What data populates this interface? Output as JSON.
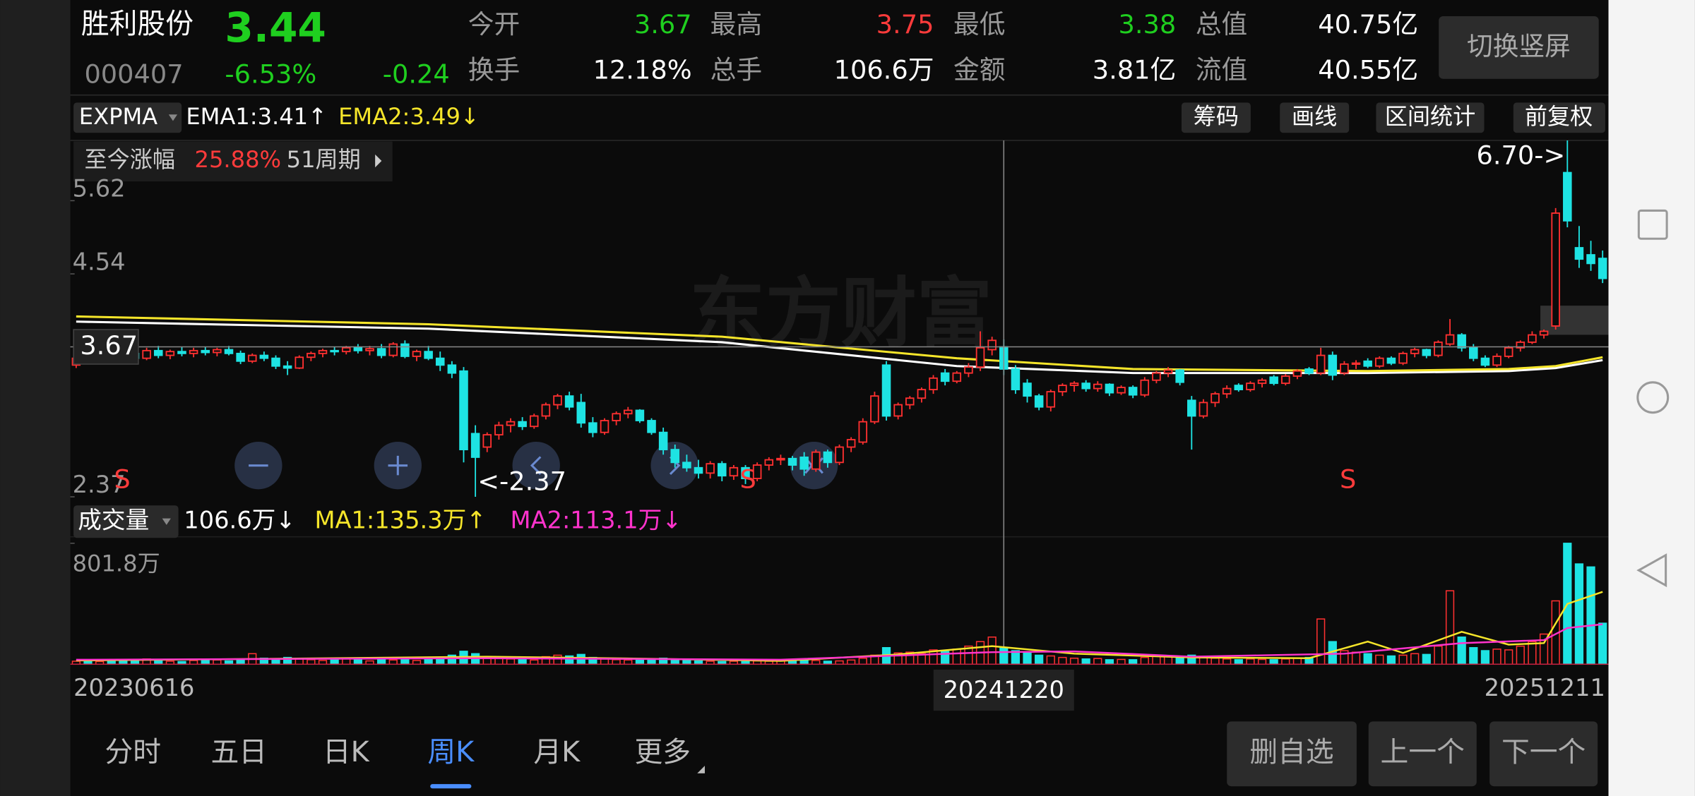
{
  "header": {
    "name": "胜利股份",
    "price": "3.44",
    "code": "000407",
    "change_pct": "-6.53%",
    "change": "-0.24",
    "tone": "down",
    "button": "切换竖屏",
    "stats": [
      {
        "label": "今开",
        "value": "3.67",
        "tone": "down"
      },
      {
        "label": "最高",
        "value": "3.75",
        "tone": "up"
      },
      {
        "label": "最低",
        "value": "3.38",
        "tone": "down"
      },
      {
        "label": "总值",
        "value": "40.75亿",
        "tone": "flat"
      },
      {
        "label": "换手",
        "value": "12.18%",
        "tone": "flat"
      },
      {
        "label": "总手",
        "value": "106.6万",
        "tone": "flat"
      },
      {
        "label": "金额",
        "value": "3.81亿",
        "tone": "flat"
      },
      {
        "label": "流值",
        "value": "40.55亿",
        "tone": "flat"
      }
    ]
  },
  "colors": {
    "up": "#ff3b3b",
    "down": "#1fcf1f",
    "flat": "#ffffff",
    "candle_up": "#ff3030",
    "candle_down": "#1ee3e3"
  },
  "indicator": {
    "name": "EXPMA",
    "ema1": "EMA1:3.41↑",
    "ema2": "EMA2:3.49↓"
  },
  "tools": [
    "筹码",
    "画线",
    "区间统计",
    "前复权"
  ],
  "range_stat": {
    "label": "至今涨幅",
    "value": "25.88%",
    "period": "51周期"
  },
  "chart": {
    "type": "candlestick",
    "watermark": "东方财富",
    "log": true,
    "ylim": [
      2.37,
      6.7
    ],
    "yticks": [
      5.62,
      4.54,
      2.37
    ],
    "crosshair_index": 79,
    "crosshair_value": 3.67,
    "max_label": {
      "value": 6.7,
      "label": "6.70->"
    },
    "min_label": {
      "value": 2.37,
      "label": "<-2.37"
    },
    "signals": [
      "S",
      "S",
      "S"
    ],
    "categories": [
      "20230616",
      null,
      null,
      null,
      null,
      null,
      null,
      null,
      null,
      null,
      null,
      null,
      null,
      null,
      null,
      null,
      null,
      null,
      null,
      null,
      null,
      null,
      null,
      null,
      null,
      null,
      null,
      null,
      null,
      null,
      null,
      null,
      null,
      null,
      null,
      null,
      null,
      null,
      null,
      null,
      null,
      null,
      null,
      null,
      null,
      null,
      null,
      null,
      null,
      null,
      null,
      null,
      null,
      null,
      null,
      null,
      null,
      null,
      null,
      null,
      null,
      null,
      null,
      null,
      null,
      null,
      null,
      null,
      null,
      null,
      null,
      null,
      null,
      null,
      null,
      null,
      null,
      null,
      null,
      "20241220",
      null,
      null,
      null,
      null,
      null,
      null,
      null,
      null,
      null,
      null,
      null,
      null,
      null,
      null,
      null,
      null,
      null,
      null,
      null,
      null,
      null,
      null,
      null,
      null,
      null,
      null,
      null,
      null,
      null,
      null,
      null,
      null,
      null,
      null,
      null,
      null,
      null,
      null,
      null,
      null,
      null,
      null,
      null,
      null,
      null,
      null,
      null,
      null,
      null,
      null,
      "20251211"
    ],
    "candles": [
      [
        3.48,
        3.58,
        3.45,
        3.55
      ],
      [
        3.55,
        3.62,
        3.5,
        3.52
      ],
      [
        3.52,
        3.66,
        3.5,
        3.64
      ],
      [
        3.64,
        3.7,
        3.58,
        3.62
      ],
      [
        3.62,
        3.68,
        3.56,
        3.6
      ],
      [
        3.6,
        3.65,
        3.52,
        3.55
      ],
      [
        3.55,
        3.66,
        3.53,
        3.63
      ],
      [
        3.63,
        3.68,
        3.55,
        3.58
      ],
      [
        3.58,
        3.64,
        3.54,
        3.62
      ],
      [
        3.62,
        3.67,
        3.57,
        3.6
      ],
      [
        3.6,
        3.66,
        3.56,
        3.63
      ],
      [
        3.63,
        3.67,
        3.58,
        3.61
      ],
      [
        3.61,
        3.66,
        3.57,
        3.64
      ],
      [
        3.64,
        3.68,
        3.58,
        3.6
      ],
      [
        3.6,
        3.63,
        3.49,
        3.52
      ],
      [
        3.52,
        3.6,
        3.5,
        3.58
      ],
      [
        3.58,
        3.62,
        3.52,
        3.55
      ],
      [
        3.55,
        3.58,
        3.44,
        3.47
      ],
      [
        3.47,
        3.52,
        3.38,
        3.45
      ],
      [
        3.45,
        3.58,
        3.44,
        3.56
      ],
      [
        3.56,
        3.62,
        3.52,
        3.6
      ],
      [
        3.6,
        3.65,
        3.56,
        3.63
      ],
      [
        3.63,
        3.67,
        3.58,
        3.62
      ],
      [
        3.62,
        3.68,
        3.59,
        3.66
      ],
      [
        3.66,
        3.7,
        3.6,
        3.63
      ],
      [
        3.63,
        3.68,
        3.58,
        3.65
      ],
      [
        3.65,
        3.7,
        3.55,
        3.58
      ],
      [
        3.58,
        3.72,
        3.56,
        3.7
      ],
      [
        3.7,
        3.74,
        3.55,
        3.57
      ],
      [
        3.57,
        3.64,
        3.52,
        3.62
      ],
      [
        3.62,
        3.68,
        3.53,
        3.55
      ],
      [
        3.55,
        3.62,
        3.42,
        3.48
      ],
      [
        3.48,
        3.52,
        3.35,
        3.4
      ],
      [
        3.42,
        3.46,
        2.62,
        2.72
      ],
      [
        2.85,
        2.92,
        2.37,
        2.66
      ],
      [
        2.74,
        2.86,
        2.7,
        2.84
      ],
      [
        2.84,
        2.95,
        2.8,
        2.92
      ],
      [
        2.92,
        2.98,
        2.86,
        2.95
      ],
      [
        2.95,
        2.99,
        2.88,
        2.91
      ],
      [
        2.91,
        3.02,
        2.89,
        3.0
      ],
      [
        3.0,
        3.12,
        2.97,
        3.1
      ],
      [
        3.1,
        3.2,
        3.06,
        3.18
      ],
      [
        3.18,
        3.22,
        3.05,
        3.08
      ],
      [
        3.12,
        3.2,
        2.9,
        2.94
      ],
      [
        2.94,
        2.99,
        2.82,
        2.86
      ],
      [
        2.86,
        2.98,
        2.84,
        2.96
      ],
      [
        2.96,
        3.04,
        2.92,
        3.02
      ],
      [
        3.02,
        3.08,
        2.98,
        3.05
      ],
      [
        3.05,
        3.06,
        2.94,
        2.96
      ],
      [
        2.96,
        2.98,
        2.84,
        2.86
      ],
      [
        2.86,
        2.9,
        2.68,
        2.72
      ],
      [
        2.72,
        2.76,
        2.58,
        2.62
      ],
      [
        2.62,
        2.68,
        2.55,
        2.58
      ],
      [
        2.58,
        2.64,
        2.5,
        2.54
      ],
      [
        2.54,
        2.63,
        2.5,
        2.61
      ],
      [
        2.61,
        2.63,
        2.48,
        2.52
      ],
      [
        2.52,
        2.6,
        2.49,
        2.58
      ],
      [
        2.58,
        2.6,
        2.46,
        2.5
      ],
      [
        2.5,
        2.62,
        2.48,
        2.6
      ],
      [
        2.6,
        2.66,
        2.56,
        2.64
      ],
      [
        2.64,
        2.68,
        2.6,
        2.65
      ],
      [
        2.65,
        2.67,
        2.56,
        2.6
      ],
      [
        2.66,
        2.7,
        2.52,
        2.57
      ],
      [
        2.57,
        2.72,
        2.55,
        2.7
      ],
      [
        2.7,
        2.72,
        2.58,
        2.62
      ],
      [
        2.62,
        2.76,
        2.6,
        2.74
      ],
      [
        2.74,
        2.82,
        2.7,
        2.8
      ],
      [
        2.78,
        2.98,
        2.76,
        2.95
      ],
      [
        2.95,
        3.22,
        2.93,
        3.18
      ],
      [
        3.48,
        3.52,
        2.96,
        3.0
      ],
      [
        3.0,
        3.12,
        2.97,
        3.1
      ],
      [
        3.1,
        3.18,
        3.06,
        3.16
      ],
      [
        3.16,
        3.26,
        3.12,
        3.24
      ],
      [
        3.24,
        3.38,
        3.2,
        3.35
      ],
      [
        3.4,
        3.44,
        3.28,
        3.32
      ],
      [
        3.32,
        3.42,
        3.3,
        3.4
      ],
      [
        3.4,
        3.5,
        3.36,
        3.46
      ],
      [
        3.46,
        3.84,
        3.42,
        3.66
      ],
      [
        3.64,
        3.78,
        3.58,
        3.74
      ],
      [
        3.67,
        3.75,
        3.38,
        3.44
      ],
      [
        3.44,
        3.48,
        3.2,
        3.24
      ],
      [
        3.3,
        3.34,
        3.12,
        3.18
      ],
      [
        3.18,
        3.2,
        3.05,
        3.08
      ],
      [
        3.08,
        3.24,
        3.04,
        3.22
      ],
      [
        3.22,
        3.3,
        3.18,
        3.28
      ],
      [
        3.28,
        3.32,
        3.22,
        3.3
      ],
      [
        3.3,
        3.33,
        3.22,
        3.25
      ],
      [
        3.25,
        3.32,
        3.22,
        3.29
      ],
      [
        3.29,
        3.3,
        3.18,
        3.21
      ],
      [
        3.21,
        3.28,
        3.19,
        3.26
      ],
      [
        3.26,
        3.28,
        3.16,
        3.19
      ],
      [
        3.19,
        3.36,
        3.17,
        3.33
      ],
      [
        3.33,
        3.42,
        3.3,
        3.4
      ],
      [
        3.4,
        3.46,
        3.36,
        3.43
      ],
      [
        3.43,
        3.44,
        3.28,
        3.31
      ],
      [
        3.14,
        3.18,
        2.72,
        3.0
      ],
      [
        3.0,
        3.15,
        2.98,
        3.12
      ],
      [
        3.12,
        3.22,
        3.08,
        3.2
      ],
      [
        3.2,
        3.28,
        3.16,
        3.25
      ],
      [
        3.28,
        3.3,
        3.22,
        3.24
      ],
      [
        3.24,
        3.32,
        3.22,
        3.3
      ],
      [
        3.3,
        3.35,
        3.26,
        3.33
      ],
      [
        3.36,
        3.38,
        3.28,
        3.3
      ],
      [
        3.3,
        3.39,
        3.28,
        3.37
      ],
      [
        3.37,
        3.44,
        3.34,
        3.42
      ],
      [
        3.44,
        3.46,
        3.38,
        3.4
      ],
      [
        3.4,
        3.66,
        3.38,
        3.58
      ],
      [
        3.58,
        3.62,
        3.33,
        3.38
      ],
      [
        3.4,
        3.52,
        3.38,
        3.49
      ],
      [
        3.49,
        3.53,
        3.44,
        3.5
      ],
      [
        3.52,
        3.55,
        3.45,
        3.47
      ],
      [
        3.47,
        3.57,
        3.45,
        3.55
      ],
      [
        3.55,
        3.57,
        3.48,
        3.5
      ],
      [
        3.5,
        3.62,
        3.48,
        3.6
      ],
      [
        3.6,
        3.66,
        3.56,
        3.64
      ],
      [
        3.64,
        3.65,
        3.55,
        3.58
      ],
      [
        3.58,
        3.74,
        3.56,
        3.72
      ],
      [
        3.7,
        3.98,
        3.68,
        3.8
      ],
      [
        3.8,
        3.82,
        3.62,
        3.66
      ],
      [
        3.66,
        3.7,
        3.52,
        3.55
      ],
      [
        3.55,
        3.58,
        3.46,
        3.48
      ],
      [
        3.48,
        3.6,
        3.46,
        3.57
      ],
      [
        3.57,
        3.68,
        3.55,
        3.66
      ],
      [
        3.66,
        3.74,
        3.62,
        3.72
      ],
      [
        3.72,
        3.84,
        3.7,
        3.8
      ],
      [
        3.8,
        3.86,
        3.76,
        3.84
      ],
      [
        3.9,
        5.5,
        3.86,
        5.42
      ],
      [
        6.1,
        6.7,
        5.2,
        5.3
      ],
      [
        4.9,
        5.22,
        4.62,
        4.74
      ],
      [
        4.8,
        5.0,
        4.58,
        4.68
      ],
      [
        4.75,
        4.86,
        4.42,
        4.48
      ]
    ],
    "ema": [
      {
        "color": "#ffffff",
        "x": [
          0,
          30,
          55,
          75,
          90,
          110,
          122,
          126,
          130
        ],
        "values": [
          3.95,
          3.87,
          3.72,
          3.47,
          3.4,
          3.4,
          3.42,
          3.45,
          3.53
        ]
      },
      {
        "color": "#f5e52a",
        "x": [
          0,
          30,
          55,
          75,
          90,
          110,
          122,
          126,
          130
        ],
        "values": [
          4.01,
          3.92,
          3.78,
          3.55,
          3.44,
          3.42,
          3.44,
          3.47,
          3.56
        ]
      }
    ],
    "volume": {
      "name": "成交量",
      "current": "106.6万↓",
      "ma1": "MA1:135.3万↑",
      "ma2": "MA2:113.1万↓",
      "ylim": [
        0,
        801.8
      ],
      "yticks": [
        {
          "value": 801.8,
          "label": "801.8万"
        }
      ],
      "values": [
        20,
        25,
        18,
        22,
        30,
        28,
        35,
        22,
        20,
        18,
        25,
        30,
        28,
        22,
        26,
        70,
        40,
        30,
        45,
        38,
        30,
        25,
        28,
        35,
        30,
        22,
        40,
        28,
        30,
        25,
        35,
        45,
        60,
        86,
        70,
        45,
        40,
        35,
        30,
        28,
        50,
        60,
        55,
        65,
        45,
        35,
        30,
        28,
        30,
        35,
        40,
        30,
        25,
        22,
        20,
        18,
        20,
        18,
        22,
        20,
        25,
        20,
        28,
        25,
        20,
        22,
        28,
        40,
        60,
        110,
        75,
        80,
        70,
        95,
        85,
        100,
        120,
        150,
        180,
        106.6,
        90,
        80,
        60,
        55,
        45,
        40,
        35,
        38,
        30,
        32,
        30,
        45,
        55,
        50,
        40,
        60,
        45,
        40,
        35,
        30,
        35,
        32,
        30,
        35,
        40,
        45,
        300,
        150,
        90,
        80,
        70,
        60,
        55,
        60,
        70,
        65,
        120,
        487,
        180,
        110,
        90,
        100,
        95,
        120,
        150,
        200,
        420,
        801.8,
        665,
        645,
        272
      ],
      "lines": [
        {
          "color": "#f5e52a",
          "x": [
            0,
            15,
            35,
            50,
            60,
            70,
            78,
            85,
            95,
            105,
            110,
            113,
            118,
            122,
            125,
            127,
            130
          ],
          "values": [
            25,
            35,
            50,
            35,
            22,
            65,
            120,
            70,
            45,
            40,
            150,
            75,
            215,
            130,
            140,
            400,
            480
          ]
        },
        {
          "color": "#ff33cc",
          "x": [
            0,
            35,
            60,
            78,
            85,
            95,
            108,
            118,
            125,
            127,
            130
          ],
          "values": [
            30,
            40,
            30,
            80,
            85,
            50,
            70,
            140,
            160,
            240,
            265
          ]
        }
      ]
    }
  },
  "tabs": {
    "items": [
      "分时",
      "五日",
      "日K",
      "周K",
      "月K",
      "更多"
    ],
    "active": 3
  },
  "buttons": [
    "删自选",
    "上一个",
    "下一个"
  ]
}
